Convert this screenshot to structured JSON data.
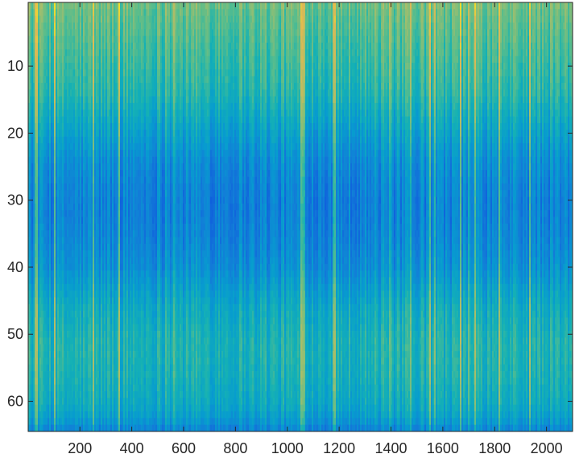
{
  "chart_data": {
    "type": "heatmap",
    "title": "",
    "xlabel": "",
    "ylabel": "",
    "xlim": [
      0.5,
      2100.5
    ],
    "ylim": [
      0.5,
      64.5
    ],
    "y_direction": "reversed",
    "colormap": "parula",
    "grid": false,
    "x_ticks": [
      200,
      400,
      600,
      800,
      1000,
      1200,
      1400,
      1600,
      1800,
      2000
    ],
    "x_tick_labels": [
      "200",
      "400",
      "600",
      "800",
      "1000",
      "1200",
      "1400",
      "1600",
      "1800",
      "2000"
    ],
    "y_ticks": [
      10,
      20,
      30,
      40,
      50,
      60
    ],
    "y_tick_labels": [
      "10",
      "20",
      "30",
      "40",
      "50",
      "60"
    ],
    "n_rows": 64,
    "n_cols": 2100,
    "row_mean_level": [
      0.66,
      0.64,
      0.63,
      0.62,
      0.61,
      0.6,
      0.59,
      0.58,
      0.57,
      0.56,
      0.55,
      0.54,
      0.53,
      0.52,
      0.5,
      0.48,
      0.46,
      0.44,
      0.42,
      0.4,
      0.38,
      0.36,
      0.34,
      0.32,
      0.31,
      0.3,
      0.29,
      0.28,
      0.28,
      0.27,
      0.27,
      0.27,
      0.27,
      0.28,
      0.28,
      0.29,
      0.3,
      0.31,
      0.32,
      0.33,
      0.35,
      0.37,
      0.39,
      0.41,
      0.43,
      0.45,
      0.46,
      0.47,
      0.48,
      0.49,
      0.5,
      0.5,
      0.5,
      0.5,
      0.49,
      0.49,
      0.48,
      0.47,
      0.46,
      0.45,
      0.43,
      0.4,
      0.36,
      0.3
    ],
    "bright_columns": [
      250,
      1050,
      1550,
      1720,
      1930
    ]
  }
}
